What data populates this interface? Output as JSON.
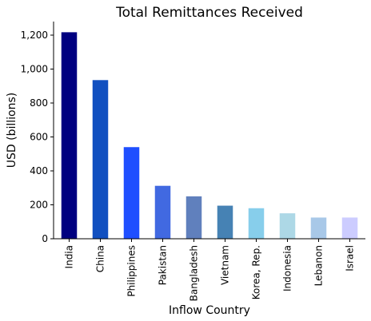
{
  "chart_data": {
    "type": "bar",
    "title": "Total Remittances Received",
    "xlabel": "Inflow Country",
    "ylabel": "USD (billions)",
    "categories": [
      "India",
      "China",
      "Philippines",
      "Pakistan",
      "Bangladesh",
      "Vietnam",
      "Korea, Rep.",
      "Indonesia",
      "Lebanon",
      "Israel"
    ],
    "values": [
      1217,
      935,
      540,
      312,
      250,
      195,
      180,
      150,
      125,
      125
    ],
    "colors": [
      "#000080",
      "#1150c0",
      "#1f4fff",
      "#4169e1",
      "#6080bd",
      "#4682b4",
      "#87ceeb",
      "#add8e6",
      "#a8c8e8",
      "#ccccff"
    ],
    "ylim": [
      0,
      1280
    ],
    "yticks": [
      0,
      200,
      400,
      600,
      800,
      1000,
      1200
    ],
    "ytick_labels": [
      "0",
      "200",
      "400",
      "600",
      "800",
      "1,000",
      "1,200"
    ],
    "grid": false,
    "legend": "none"
  }
}
